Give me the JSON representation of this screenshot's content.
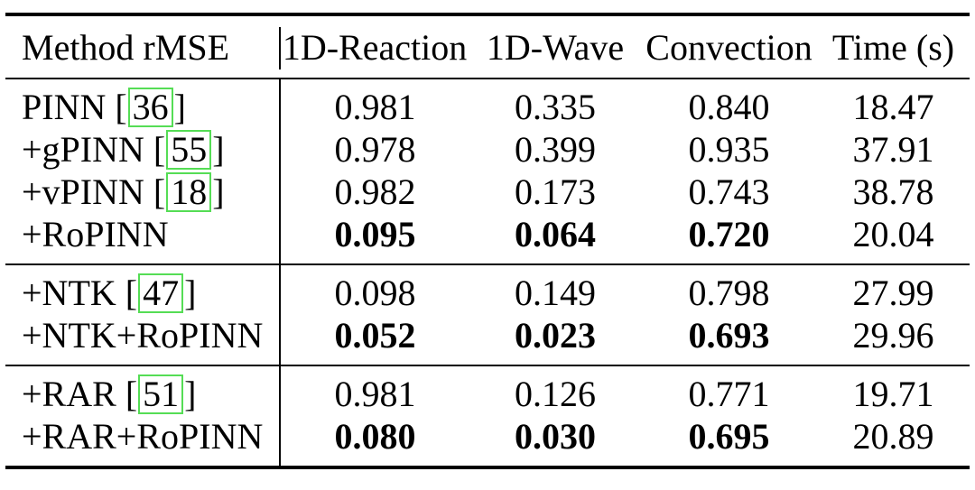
{
  "page": {
    "background_color": "#ffffff",
    "text_color": "#000000",
    "citation_border_color": "#55dd55"
  },
  "table": {
    "header": {
      "method": "Method rMSE",
      "columns": [
        "1D-Reaction",
        "1D-Wave",
        "Convection",
        "Time (s)"
      ]
    },
    "groups": [
      {
        "rows": [
          {
            "method": "PINN",
            "cite": "36",
            "values": [
              "0.981",
              "0.335",
              "0.840"
            ],
            "time": "18.47",
            "bold_values": false
          },
          {
            "method": "+gPINN",
            "cite": "55",
            "values": [
              "0.978",
              "0.399",
              "0.935"
            ],
            "time": "37.91",
            "bold_values": false
          },
          {
            "method": "+vPINN",
            "cite": "18",
            "values": [
              "0.982",
              "0.173",
              "0.743"
            ],
            "time": "38.78",
            "bold_values": false
          },
          {
            "method": "+RoPINN",
            "cite": null,
            "values": [
              "0.095",
              "0.064",
              "0.720"
            ],
            "time": "20.04",
            "bold_values": true
          }
        ]
      },
      {
        "rows": [
          {
            "method": "+NTK",
            "cite": "47",
            "values": [
              "0.098",
              "0.149",
              "0.798"
            ],
            "time": "27.99",
            "bold_values": false
          },
          {
            "method": "+NTK+RoPINN",
            "cite": null,
            "values": [
              "0.052",
              "0.023",
              "0.693"
            ],
            "time": "29.96",
            "bold_values": true
          }
        ]
      },
      {
        "rows": [
          {
            "method": "+RAR",
            "cite": "51",
            "values": [
              "0.981",
              "0.126",
              "0.771"
            ],
            "time": "19.71",
            "bold_values": false
          },
          {
            "method": "+RAR+RoPINN",
            "cite": null,
            "values": [
              "0.080",
              "0.030",
              "0.695"
            ],
            "time": "20.89",
            "bold_values": true
          }
        ]
      }
    ]
  }
}
